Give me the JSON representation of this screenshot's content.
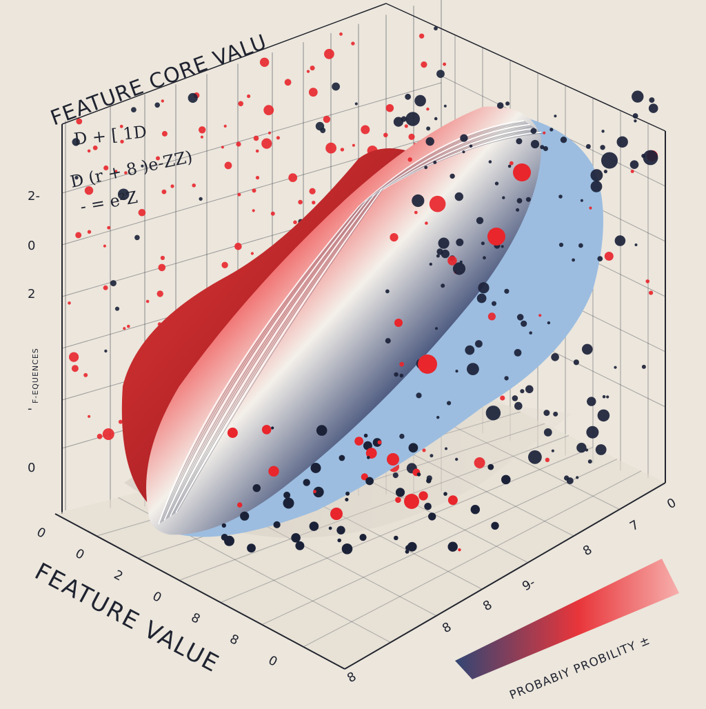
{
  "chart_data": {
    "type": "scatter",
    "title": "FEATURE  CORE VALU",
    "equations": [
      "D +    [ 1D",
      "D (r + 8 )e-ZZ)",
      "D (r + 8 )e-ZZ)",
      "-  =         e²Z"
    ],
    "x_axis_label": "FEATURE VALUE",
    "y_axis_label": "F-EQUENCES",
    "z_left_ticks": [
      "2-",
      "0",
      "2",
      "-",
      "0"
    ],
    "front_left_ticks": [
      "0",
      "0",
      "2",
      "0",
      "8",
      "8",
      "0"
    ],
    "front_right_ticks": [
      "0",
      "7",
      "8",
      "9-",
      "8",
      "8",
      "8"
    ],
    "colorbar": {
      "label": "PROBABIY PROBILITY ±",
      "colors": [
        "#22386b",
        "#e8262c",
        "#f7aaa8"
      ]
    },
    "series": [
      {
        "color": "#e8262c"
      },
      {
        "color": "#1b2238"
      }
    ],
    "grid": true,
    "surface": {
      "colors": [
        "#b21a21",
        "#ef2d2f",
        "#f4f0ea",
        "#2a3b6a",
        "#8fb6dc"
      ]
    }
  }
}
